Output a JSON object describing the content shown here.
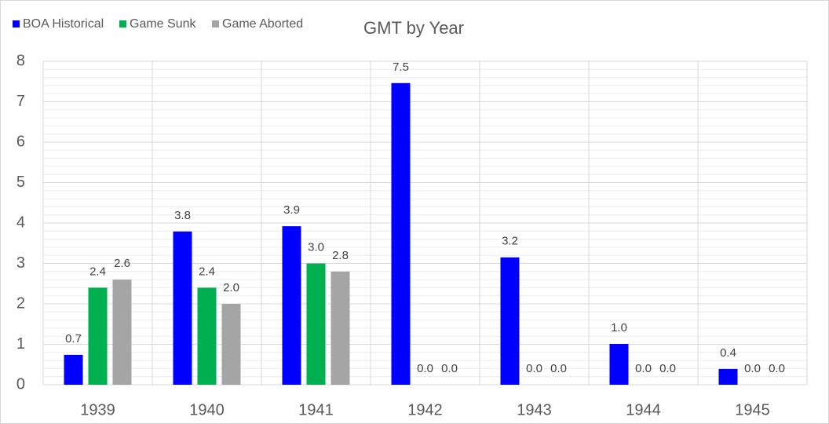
{
  "chart_data": {
    "type": "bar",
    "title": "GMT by Year",
    "categories": [
      "1939",
      "1940",
      "1941",
      "1942",
      "1943",
      "1944",
      "1945"
    ],
    "series": [
      {
        "name": "BOA Historical",
        "color": "#0000ff",
        "values": [
          0.74,
          3.79,
          3.92,
          7.46,
          3.15,
          1.01,
          0.39
        ],
        "value_labels": [
          "0.7",
          "3.8",
          "3.9",
          "7.5",
          "3.2",
          "1.0",
          "0.4"
        ]
      },
      {
        "name": "Game Sunk",
        "color": "#00b050",
        "values": [
          2.4,
          2.4,
          3.0,
          0,
          0,
          0,
          0
        ],
        "value_labels": [
          "2.4",
          "2.4",
          "3.0",
          "0.0",
          "0.0",
          "0.0",
          "0.0"
        ]
      },
      {
        "name": "Game Aborted",
        "color": "#a5a5a5",
        "values": [
          2.6,
          2.0,
          2.8,
          0,
          0,
          0,
          0
        ],
        "value_labels": [
          "2.6",
          "2.0",
          "2.8",
          "0.0",
          "0.0",
          "0.0",
          "0.0"
        ]
      }
    ],
    "ylim": [
      0,
      8
    ],
    "yticks": [
      0,
      1,
      2,
      3,
      4,
      5,
      6,
      7,
      8
    ],
    "grid": true,
    "minor_grid": true,
    "legend": "top-left"
  }
}
